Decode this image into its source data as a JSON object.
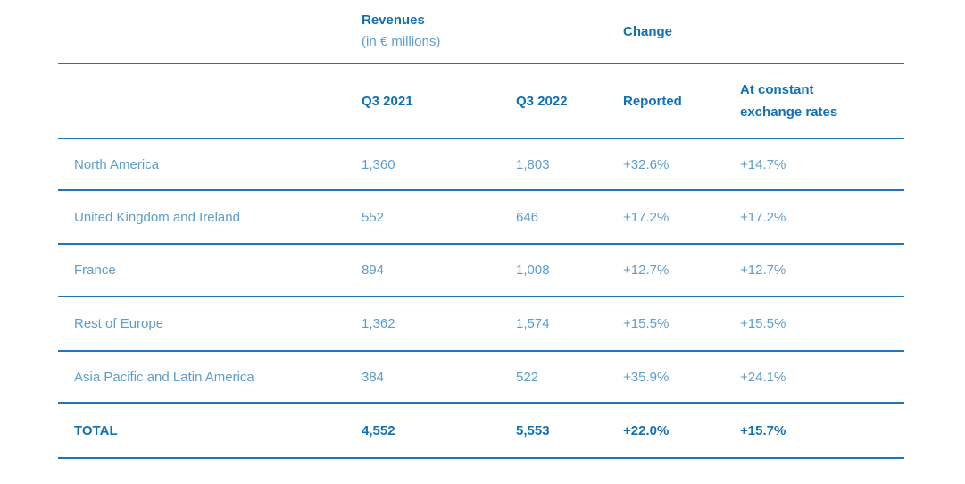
{
  "table": {
    "group_header": {
      "revenues_title": "Revenues",
      "revenues_subtitle": "(in € millions)",
      "change_title": "Change"
    },
    "column_headers": {
      "q3_2021": "Q3 2021",
      "q3_2022": "Q3 2022",
      "reported": "Reported",
      "constant": "At constant exchange rates"
    },
    "rows": [
      {
        "label": "North America",
        "q3_2021": "1,360",
        "q3_2022": "1,803",
        "reported": "+32.6%",
        "constant": "+14.7%"
      },
      {
        "label": "United Kingdom and Ireland",
        "q3_2021": "552",
        "q3_2022": "646",
        "reported": "+17.2%",
        "constant": "+17.2%"
      },
      {
        "label": "France",
        "q3_2021": "894",
        "q3_2022": "1,008",
        "reported": "+12.7%",
        "constant": "+12.7%"
      },
      {
        "label": "Rest of Europe",
        "q3_2021": "1,362",
        "q3_2022": "1,574",
        "reported": "+15.5%",
        "constant": "+15.5%"
      },
      {
        "label": "Asia Pacific and Latin America",
        "q3_2021": "384",
        "q3_2022": "522",
        "reported": "+35.9%",
        "constant": "+24.1%"
      }
    ],
    "total": {
      "label": "TOTAL",
      "q3_2021": "4,552",
      "q3_2022": "5,553",
      "reported": "+22.0%",
      "constant": "+15.7%"
    },
    "colors": {
      "accent_dark": "#1170b5",
      "accent_light": "#5f9ccb",
      "rule_line": "#2174b6"
    }
  },
  "chart_data": {
    "type": "table",
    "title": "Revenues (in € millions)",
    "columns": [
      "Region",
      "Q3 2021",
      "Q3 2022",
      "Change Reported",
      "Change At constant exchange rates"
    ],
    "rows": [
      [
        "North America",
        1360,
        1803,
        "+32.6%",
        "+14.7%"
      ],
      [
        "United Kingdom and Ireland",
        552,
        646,
        "+17.2%",
        "+17.2%"
      ],
      [
        "France",
        894,
        1008,
        "+12.7%",
        "+12.7%"
      ],
      [
        "Rest of Europe",
        1362,
        1574,
        "+15.5%",
        "+15.5%"
      ],
      [
        "Asia Pacific and Latin America",
        384,
        522,
        "+35.9%",
        "+24.1%"
      ],
      [
        "TOTAL",
        4552,
        5553,
        "+22.0%",
        "+15.7%"
      ]
    ]
  }
}
